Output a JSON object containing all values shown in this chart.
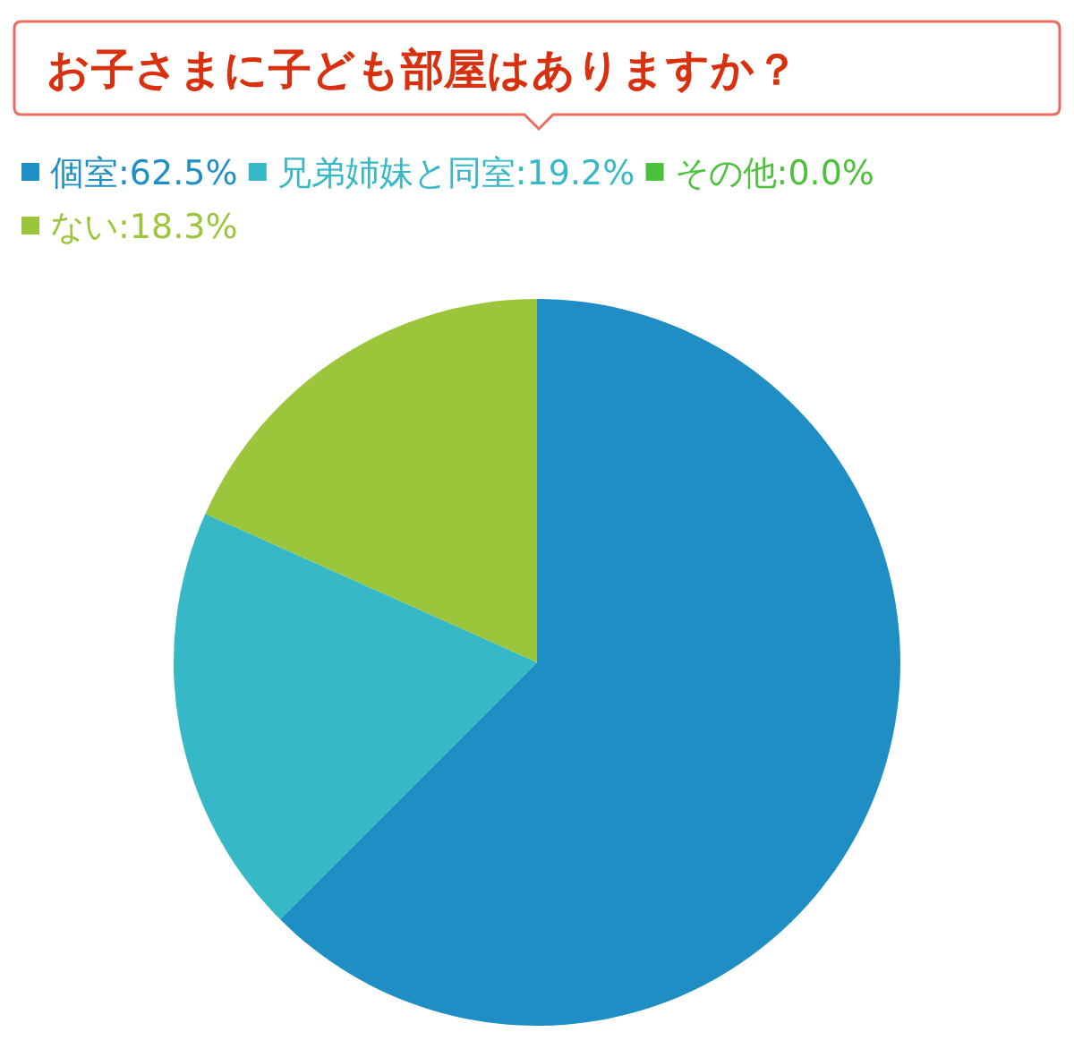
{
  "chart_data": {
    "type": "pie",
    "title": "お子さまに子ども部屋はありますか？",
    "categories": [
      "個室",
      "兄弟姉妹と同室",
      "その他",
      "ない"
    ],
    "values": [
      62.5,
      19.2,
      0.0,
      18.3
    ],
    "value_labels": [
      "62.5%",
      "19.2%",
      "0.0%",
      "18.3%"
    ],
    "colors": [
      "#1f8ec4",
      "#36b8c6",
      "#4cc23c",
      "#9bc53a"
    ],
    "legend": "top left"
  }
}
